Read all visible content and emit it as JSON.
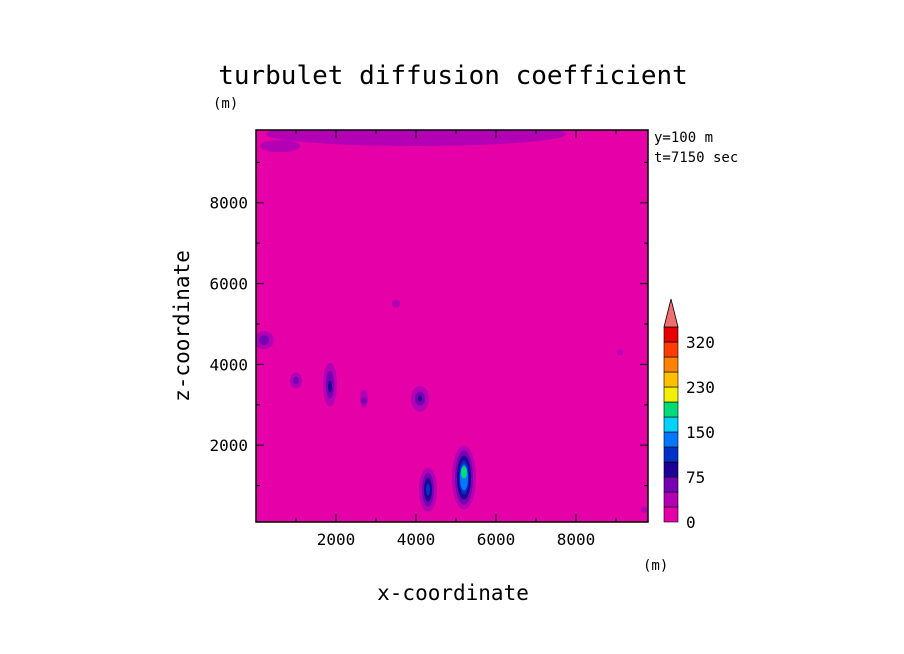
{
  "chart_data": {
    "type": "heatmap",
    "title": "turbulet diffusion coefficient",
    "xlabel": "x-coordinate",
    "ylabel": "z-coordinate",
    "x_unit": "(m)",
    "y_unit": "(m)",
    "annotations": [
      "y=100 m",
      "t=7150 sec"
    ],
    "xlim": [
      0,
      9800
    ],
    "ylim": [
      100,
      9800
    ],
    "x_ticks": [
      "2000",
      "4000",
      "6000",
      "8000"
    ],
    "y_ticks": [
      "2000",
      "4000",
      "6000",
      "8000"
    ],
    "background_level": 0,
    "colorbar": {
      "levels": [
        0,
        25,
        50,
        75,
        100,
        125,
        150,
        175,
        200,
        230,
        260,
        290,
        320
      ],
      "tick_labels": [
        "0",
        "75",
        "150",
        "230",
        "320"
      ],
      "colors": [
        "#e600a8",
        "#b400b4",
        "#7800b4",
        "#1e0096",
        "#0032c8",
        "#0078ff",
        "#00d2ff",
        "#00dc78",
        "#f0f000",
        "#ffbe00",
        "#ff8200",
        "#ff3c00",
        "#e60000"
      ],
      "extend_color": "#f07070"
    },
    "features": [
      {
        "name": "upper-band",
        "x": 4000,
        "z": 9700,
        "level": 25
      },
      {
        "name": "upper-left-patch",
        "x": 600,
        "z": 9400,
        "level": 25
      },
      {
        "name": "left-edge-cell",
        "x": 200,
        "z": 4600,
        "level": 75
      },
      {
        "name": "cell-1100",
        "x": 1000,
        "z": 3600,
        "level": 50
      },
      {
        "name": "cell-1900",
        "x": 1850,
        "z": 3500,
        "level": 75
      },
      {
        "name": "cell-2700",
        "x": 2700,
        "z": 3100,
        "level": 75
      },
      {
        "name": "cell-4100",
        "x": 4100,
        "z": 3150,
        "level": 75
      },
      {
        "name": "cell-4300",
        "x": 4300,
        "z": 900,
        "level": 100
      },
      {
        "name": "cell-5200",
        "x": 5200,
        "z": 1200,
        "level": 200
      },
      {
        "name": "cell-3500",
        "x": 3500,
        "z": 5500,
        "level": 25
      },
      {
        "name": "cell-9100",
        "x": 9100,
        "z": 4300,
        "level": 25
      },
      {
        "name": "cell-9800",
        "x": 9700,
        "z": 400,
        "level": 25
      }
    ]
  }
}
